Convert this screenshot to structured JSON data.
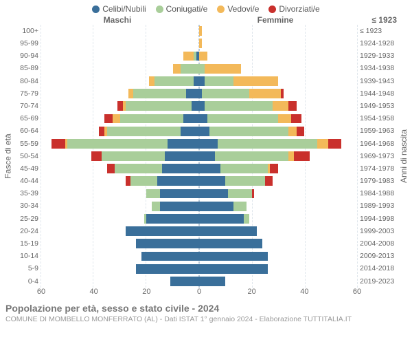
{
  "legend": [
    {
      "label": "Celibi/Nubili",
      "color": "#3a6f9a"
    },
    {
      "label": "Coniugati/e",
      "color": "#a9ce9a"
    },
    {
      "label": "Vedovi/e",
      "color": "#f3b95a"
    },
    {
      "label": "Divorziati/e",
      "color": "#c9302c"
    }
  ],
  "headers": {
    "male": "Maschi",
    "female": "Femmine",
    "birth": "≤ 1923"
  },
  "ylabel_left": "Fasce di età",
  "ylabel_right": "Anni di nascita",
  "xlim": 60,
  "xticks": [
    60,
    40,
    20,
    0,
    20,
    40,
    60
  ],
  "colors": {
    "single": "#3a6f9a",
    "married": "#a9ce9a",
    "widowed": "#f3b95a",
    "divorced": "#c9302c",
    "grid": "#dfe6ec",
    "center": "#b9c9d9",
    "bg": "#ffffff"
  },
  "segments": [
    "single",
    "married",
    "widowed",
    "divorced"
  ],
  "rows": [
    {
      "age": "100+",
      "birth": "≤ 1923",
      "m": [
        0,
        0,
        0,
        0
      ],
      "f": [
        0,
        0,
        1,
        0
      ]
    },
    {
      "age": "95-99",
      "birth": "1924-1928",
      "m": [
        0,
        0,
        0,
        0
      ],
      "f": [
        0,
        0,
        1,
        0
      ]
    },
    {
      "age": "90-94",
      "birth": "1929-1933",
      "m": [
        1,
        1,
        4,
        0
      ],
      "f": [
        0,
        0,
        3,
        0
      ]
    },
    {
      "age": "85-89",
      "birth": "1934-1938",
      "m": [
        0,
        7,
        3,
        0
      ],
      "f": [
        0,
        2,
        14,
        0
      ]
    },
    {
      "age": "80-84",
      "birth": "1939-1943",
      "m": [
        2,
        15,
        2,
        0
      ],
      "f": [
        2,
        11,
        17,
        0
      ]
    },
    {
      "age": "75-79",
      "birth": "1944-1948",
      "m": [
        5,
        20,
        2,
        0
      ],
      "f": [
        1,
        18,
        12,
        1
      ]
    },
    {
      "age": "70-74",
      "birth": "1949-1953",
      "m": [
        3,
        25,
        1,
        2
      ],
      "f": [
        2,
        26,
        6,
        3
      ]
    },
    {
      "age": "65-69",
      "birth": "1954-1958",
      "m": [
        6,
        24,
        3,
        3
      ],
      "f": [
        3,
        27,
        5,
        4
      ]
    },
    {
      "age": "60-64",
      "birth": "1959-1963",
      "m": [
        7,
        28,
        1,
        2
      ],
      "f": [
        4,
        30,
        3,
        3
      ]
    },
    {
      "age": "55-59",
      "birth": "1964-1968",
      "m": [
        12,
        38,
        1,
        5
      ],
      "f": [
        7,
        38,
        4,
        5
      ]
    },
    {
      "age": "50-54",
      "birth": "1969-1973",
      "m": [
        13,
        24,
        0,
        4
      ],
      "f": [
        6,
        28,
        2,
        6
      ]
    },
    {
      "age": "45-49",
      "birth": "1974-1978",
      "m": [
        14,
        18,
        0,
        3
      ],
      "f": [
        8,
        18,
        1,
        3
      ]
    },
    {
      "age": "40-44",
      "birth": "1979-1983",
      "m": [
        16,
        10,
        0,
        2
      ],
      "f": [
        10,
        15,
        0,
        3
      ]
    },
    {
      "age": "35-39",
      "birth": "1984-1988",
      "m": [
        15,
        5,
        0,
        0
      ],
      "f": [
        11,
        9,
        0,
        1
      ]
    },
    {
      "age": "30-34",
      "birth": "1989-1993",
      "m": [
        15,
        3,
        0,
        0
      ],
      "f": [
        13,
        5,
        0,
        0
      ]
    },
    {
      "age": "25-29",
      "birth": "1994-1998",
      "m": [
        20,
        1,
        0,
        0
      ],
      "f": [
        17,
        2,
        0,
        0
      ]
    },
    {
      "age": "20-24",
      "birth": "1999-2003",
      "m": [
        28,
        0,
        0,
        0
      ],
      "f": [
        22,
        0,
        0,
        0
      ]
    },
    {
      "age": "15-19",
      "birth": "2004-2008",
      "m": [
        24,
        0,
        0,
        0
      ],
      "f": [
        24,
        0,
        0,
        0
      ]
    },
    {
      "age": "10-14",
      "birth": "2009-2013",
      "m": [
        22,
        0,
        0,
        0
      ],
      "f": [
        26,
        0,
        0,
        0
      ]
    },
    {
      "age": "5-9",
      "birth": "2014-2018",
      "m": [
        24,
        0,
        0,
        0
      ],
      "f": [
        26,
        0,
        0,
        0
      ]
    },
    {
      "age": "0-4",
      "birth": "2019-2023",
      "m": [
        11,
        0,
        0,
        0
      ],
      "f": [
        10,
        0,
        0,
        0
      ]
    }
  ],
  "title": "Popolazione per età, sesso e stato civile - 2024",
  "subtitle": "COMUNE DI MOMBELLO MONFERRATO (AL) - Dati ISTAT 1° gennaio 2024 - Elaborazione TUTTITALIA.IT"
}
